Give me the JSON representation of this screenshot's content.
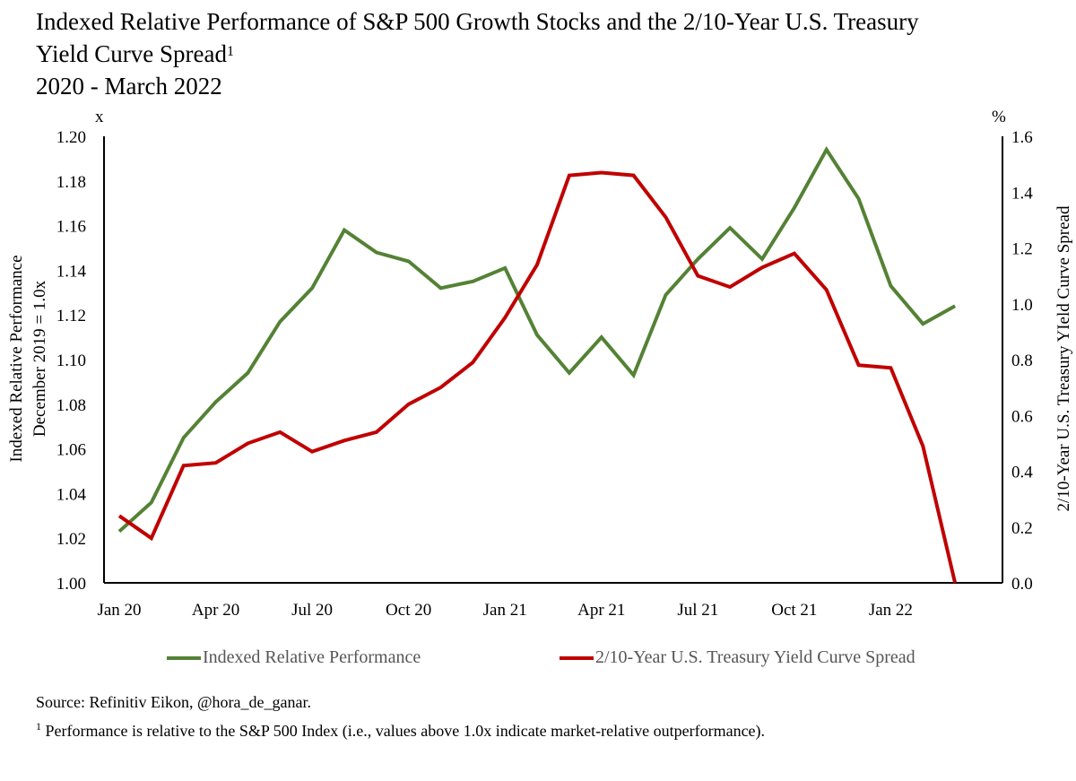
{
  "title": {
    "line1": "Indexed Relative Performance of S&P 500 Growth Stocks and the 2/10-Year U.S. Treasury",
    "line2": "Yield Curve Spread",
    "line2_sup": "1",
    "line3": "2020 - March 2022"
  },
  "notes": {
    "source": "Source: Refinitiv Eikon, @hora_de_ganar.",
    "footnote_mark": "1",
    "footnote": " Performance is relative to the S&P 500 Index (i.e., values above 1.0x indicate market-relative outperformance)."
  },
  "chart_data": {
    "type": "line",
    "title": "Indexed Relative Performance of S&P 500 Growth Stocks and the 2/10-Year U.S. Treasury Yield Curve Spread, 2020 - March 2022",
    "categories": [
      "Jan 20",
      "Feb 20",
      "Mar 20",
      "Apr 20",
      "May 20",
      "Jun 20",
      "Jul 20",
      "Aug 20",
      "Sep 20",
      "Oct 20",
      "Nov 20",
      "Dec 20",
      "Jan 21",
      "Feb 21",
      "Mar 21",
      "Apr 21",
      "May 21",
      "Jun 21",
      "Jul 21",
      "Aug 21",
      "Sep 21",
      "Oct 21",
      "Nov 21",
      "Dec 21",
      "Jan 22",
      "Feb 22",
      "Mar 22"
    ],
    "x_tick_labels": [
      "Jan 20",
      "Apr 20",
      "Jul 20",
      "Oct 20",
      "Jan 21",
      "Apr 21",
      "Jul 21",
      "Oct 21",
      "Jan 22"
    ],
    "ylabel_left": "Indexed Relative Performance\nDecember 2019 = 1.0x",
    "ylabel_left_line1": "Indexed Relative Performance",
    "ylabel_left_line2": "December 2019 = 1.0x",
    "ylabel_right": "2/10-Year U.S. Treasury YIeld Curve Spread",
    "unit_left": "x",
    "unit_right": "%",
    "ylim_left": [
      1.0,
      1.2
    ],
    "ylim_right": [
      0.0,
      1.6
    ],
    "yticks_left": [
      "1.00",
      "1.02",
      "1.04",
      "1.06",
      "1.08",
      "1.10",
      "1.12",
      "1.14",
      "1.16",
      "1.18",
      "1.20"
    ],
    "yticks_right": [
      "0.0",
      "0.2",
      "0.4",
      "0.6",
      "0.8",
      "1.0",
      "1.2",
      "1.4",
      "1.6"
    ],
    "grid": false,
    "legend_position": "bottom",
    "series": [
      {
        "name": "Indexed Relative Performance",
        "axis": "left",
        "color": "#548235",
        "values": [
          1.023,
          1.036,
          1.065,
          1.081,
          1.094,
          1.117,
          1.132,
          1.158,
          1.148,
          1.144,
          1.132,
          1.135,
          1.141,
          1.111,
          1.094,
          1.11,
          1.093,
          1.129,
          1.145,
          1.159,
          1.145,
          1.168,
          1.194,
          1.172,
          1.133,
          1.116,
          1.124
        ]
      },
      {
        "name": "2/10-Year U.S. Treasury Yield Curve Spread",
        "axis": "right",
        "color": "#C00000",
        "values": [
          0.24,
          0.16,
          0.42,
          0.43,
          0.5,
          0.54,
          0.47,
          0.51,
          0.54,
          0.64,
          0.7,
          0.79,
          0.95,
          1.14,
          1.46,
          1.47,
          1.46,
          1.31,
          1.1,
          1.06,
          1.13,
          1.18,
          1.05,
          0.78,
          0.77,
          0.49,
          0.0
        ]
      }
    ]
  }
}
